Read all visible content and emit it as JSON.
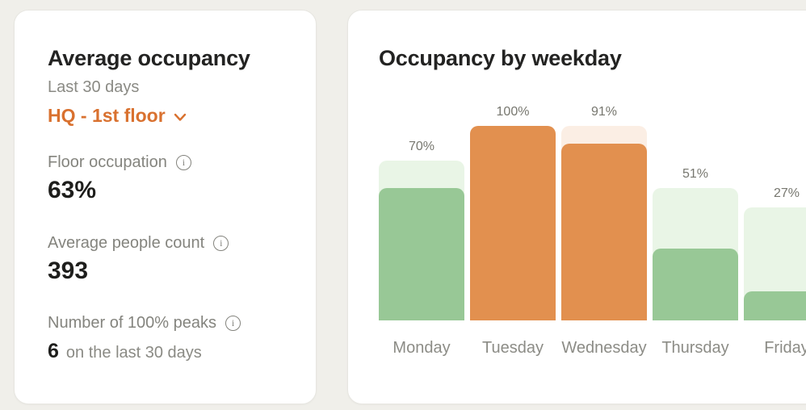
{
  "page": {
    "background": "#f0efea"
  },
  "average_card": {
    "title": "Average occupancy",
    "subtitle": "Last 30 days",
    "floor_selector": {
      "label": "HQ - 1st floor",
      "icon": "chevron-down",
      "color": "#d9712f"
    },
    "metrics": [
      {
        "label": "Floor occupation",
        "value": "63%",
        "info_icon": "i"
      },
      {
        "label": "Average people count",
        "value": "393",
        "info_icon": "i"
      },
      {
        "label": "Number of 100% peaks",
        "value": "6",
        "value_suffix": "on the last 30 days",
        "info_icon": "i"
      }
    ]
  },
  "chart_card": {
    "title": "Occupancy by weekday"
  },
  "chart_data": {
    "type": "bar",
    "title": "Occupancy by weekday",
    "xlabel": "",
    "ylabel": "",
    "ylim": [
      0,
      100
    ],
    "grid": false,
    "legend": false,
    "categories": [
      "Monday",
      "Tuesday",
      "Wednesday",
      "Thursday",
      "Friday"
    ],
    "values": [
      70,
      100,
      91,
      51,
      27
    ],
    "value_labels": [
      "70%",
      "100%",
      "91%",
      "51%",
      "27%"
    ],
    "series": [
      {
        "name": "occupancy_bar_height_pct",
        "values": [
          68,
          100,
          91,
          37,
          15
        ]
      },
      {
        "name": "background_bar_height_pct",
        "values": [
          82,
          100,
          100,
          68,
          58
        ]
      }
    ],
    "bar_styles": [
      "green",
      "orange",
      "orange",
      "green",
      "green"
    ],
    "colors": {
      "green_fill": "#98c896",
      "green_bg": "#e9f5e6",
      "orange_fill": "#e2904f",
      "orange_bg": "#fbeee4",
      "label_text": "#77776f",
      "axis_text": "#8c8c86"
    },
    "notes": "Friday bar is cropped by the right edge of the viewport"
  }
}
